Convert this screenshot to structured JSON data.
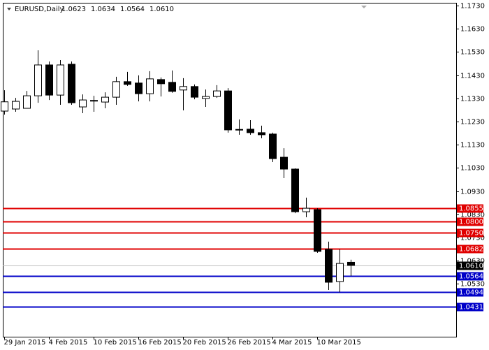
{
  "chart_data": {
    "type": "candlestick",
    "title": "EURUSD,Daily",
    "header_values": [
      "1.0623",
      "1.0634",
      "1.0564",
      "1.0610"
    ],
    "categories": [
      "29 Jan 2015",
      null,
      null,
      null,
      "4 Feb 2015",
      null,
      null,
      null,
      "10 Feb 2015",
      null,
      null,
      null,
      "16 Feb 2015",
      null,
      null,
      null,
      "20 Feb 2015",
      null,
      null,
      null,
      "26 Feb 2015",
      null,
      null,
      null,
      "4 Mar 2015",
      null,
      null,
      null,
      "10 Mar 2015",
      null,
      null,
      null
    ],
    "open": [
      1.1275,
      1.1284,
      1.1287,
      1.1341,
      1.1474,
      1.1344,
      1.1477,
      1.1293,
      1.1318,
      1.1314,
      1.1335,
      1.1402,
      1.1396,
      1.135,
      1.1411,
      1.1399,
      1.1366,
      1.1381,
      1.1329,
      1.1338,
      1.1362,
      1.1196,
      1.1197,
      1.1182,
      1.1176,
      1.1076,
      1.1025,
      1.0841,
      1.085,
      1.0679,
      1.054,
      1.0623
    ],
    "high": [
      1.1365,
      1.1332,
      1.1362,
      1.1537,
      1.1489,
      1.1495,
      1.1489,
      1.1347,
      1.1341,
      1.1356,
      1.1423,
      1.1444,
      1.1429,
      1.1447,
      1.142,
      1.145,
      1.1417,
      1.139,
      1.1368,
      1.1387,
      1.1374,
      1.1239,
      1.1236,
      1.1212,
      1.1182,
      1.1115,
      1.1028,
      1.0902,
      1.0856,
      1.0712,
      1.0679,
      1.0634
    ],
    "low": [
      1.126,
      1.1272,
      1.1287,
      1.1311,
      1.1323,
      1.1302,
      1.1302,
      1.1266,
      1.1272,
      1.1287,
      1.1302,
      1.1384,
      1.1317,
      1.1317,
      1.1338,
      1.1354,
      1.1278,
      1.1326,
      1.1293,
      1.1332,
      1.1182,
      1.1173,
      1.1173,
      1.1158,
      1.1055,
      1.0986,
      1.0835,
      1.0817,
      1.0664,
      1.0504,
      1.0494,
      1.0564
    ],
    "close": [
      1.1315,
      1.1317,
      1.1341,
      1.1474,
      1.1344,
      1.1474,
      1.1311,
      1.1323,
      1.1321,
      1.1335,
      1.1402,
      1.139,
      1.135,
      1.1414,
      1.1393,
      1.136,
      1.1381,
      1.1335,
      1.1338,
      1.1362,
      1.1194,
      1.1194,
      1.1182,
      1.1173,
      1.107,
      1.1025,
      1.0841,
      1.0856,
      1.067,
      1.0537,
      1.0618,
      1.061
    ],
    "up_color": "#ffffff",
    "down_color": "#000000",
    "ylim": [
      1.0302,
      1.1742
    ],
    "yticks": [
      {
        "value": 1.173,
        "label": "1.1730"
      },
      {
        "value": 1.163,
        "label": "1.1630"
      },
      {
        "value": 1.153,
        "label": "1.1530"
      },
      {
        "value": 1.143,
        "label": "1.1430"
      },
      {
        "value": 1.133,
        "label": "1.1330"
      },
      {
        "value": 1.123,
        "label": "1.1230"
      },
      {
        "value": 1.113,
        "label": "1.1130"
      },
      {
        "value": 1.103,
        "label": "1.1030"
      },
      {
        "value": 1.093,
        "label": "1.0930"
      },
      {
        "value": 1.083,
        "label": "1.0830"
      },
      {
        "value": 1.073,
        "label": "1.0730"
      },
      {
        "value": 1.063,
        "label": "1.0630"
      },
      {
        "value": 1.053,
        "label": "1.0530"
      }
    ],
    "levels": [
      {
        "value": 1.0855,
        "label": "1.0855",
        "color": "#e00000"
      },
      {
        "value": 1.08,
        "label": "1.0800",
        "color": "#e00000"
      },
      {
        "value": 1.075,
        "label": "1.0750",
        "color": "#e00000"
      },
      {
        "value": 1.0682,
        "label": "1.0682",
        "color": "#e00000"
      },
      {
        "value": 1.0564,
        "label": "1.0564",
        "color": "#0000c8"
      },
      {
        "value": 1.0494,
        "label": "1.0494",
        "color": "#0000c8"
      },
      {
        "value": 1.0431,
        "label": "1.0431",
        "color": "#0000c8"
      }
    ],
    "last_price": {
      "value": 1.061,
      "label": "1.0610",
      "color": "#000000"
    }
  }
}
